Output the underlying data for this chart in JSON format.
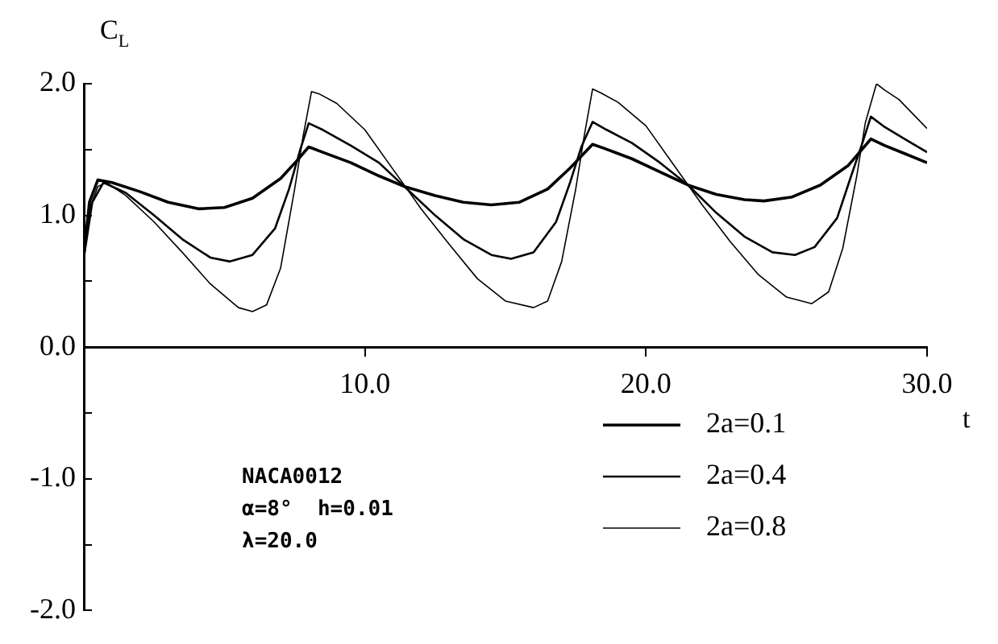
{
  "chart_data": {
    "type": "line",
    "xlabel": "t",
    "ylabel": "C$_{L}$",
    "xlim": [
      0,
      30
    ],
    "xticks": [
      {
        "value": 10,
        "label": "10.0"
      },
      {
        "value": 20,
        "label": "20.0"
      },
      {
        "value": 30,
        "label": "30.0"
      }
    ],
    "ylim": [
      -2,
      2
    ],
    "yticks": [
      {
        "value": -2,
        "label": "-2.0"
      },
      {
        "value": -1.5,
        "label": null
      },
      {
        "value": -1,
        "label": "-1.0"
      },
      {
        "value": -0.5,
        "label": null
      },
      {
        "value": 0,
        "label": "0.0"
      },
      {
        "value": 0.5,
        "label": null
      },
      {
        "value": 1,
        "label": "1.0"
      },
      {
        "value": 1.5,
        "label": null
      },
      {
        "value": 2,
        "label": "2.0"
      }
    ],
    "grid": false,
    "legend": "bottom right",
    "marker": "none",
    "annotations": [
      "NACA0012",
      "α=8°  h=0.01",
      "λ=20.0"
    ],
    "series": [
      {
        "name": "2a=0.1",
        "color": "#000000",
        "x": [
          0,
          0.2,
          0.5,
          1,
          2,
          3,
          4.1,
          5,
          6,
          7,
          7.6,
          8,
          8.5,
          9.5,
          10.5,
          11.4,
          12.5,
          13.5,
          14.5,
          15.5,
          16.5,
          17.3,
          18.1,
          18.5,
          19.5,
          20.5,
          21.5,
          22.5,
          23.5,
          24.2,
          25.2,
          26.2,
          27.2,
          28,
          28.5,
          29.2,
          30
        ],
        "values": [
          0.7,
          1.1,
          1.27,
          1.25,
          1.18,
          1.1,
          1.05,
          1.06,
          1.13,
          1.28,
          1.42,
          1.52,
          1.48,
          1.4,
          1.3,
          1.22,
          1.15,
          1.1,
          1.08,
          1.1,
          1.2,
          1.36,
          1.54,
          1.51,
          1.43,
          1.33,
          1.23,
          1.16,
          1.12,
          1.11,
          1.14,
          1.23,
          1.38,
          1.58,
          1.53,
          1.47,
          1.4
        ]
      },
      {
        "name": "2a=0.4",
        "color": "#000000",
        "x": [
          0,
          0.3,
          0.7,
          1.5,
          2.5,
          3.5,
          4.5,
          5.2,
          6,
          6.8,
          7.3,
          7.7,
          8,
          8.5,
          9.5,
          10.5,
          11.4,
          12.5,
          13.5,
          14.5,
          15.2,
          16,
          16.8,
          17.3,
          17.7,
          18.1,
          18.6,
          19.5,
          20.5,
          21.5,
          22.5,
          23.5,
          24.5,
          25.3,
          26,
          26.8,
          27.3,
          27.7,
          28,
          28.5,
          29.2,
          30
        ],
        "values": [
          0.68,
          1.1,
          1.25,
          1.17,
          1.0,
          0.82,
          0.68,
          0.65,
          0.7,
          0.9,
          1.2,
          1.5,
          1.7,
          1.65,
          1.53,
          1.4,
          1.22,
          1.0,
          0.82,
          0.7,
          0.67,
          0.72,
          0.95,
          1.25,
          1.52,
          1.71,
          1.65,
          1.55,
          1.4,
          1.23,
          1.02,
          0.84,
          0.72,
          0.7,
          0.76,
          0.98,
          1.3,
          1.55,
          1.75,
          1.67,
          1.58,
          1.48
        ]
      },
      {
        "name": "2a=0.8",
        "color": "#000000",
        "x": [
          0,
          0.2,
          0.5,
          0.8,
          1.5,
          2.5,
          3.5,
          4.5,
          5.5,
          6,
          6.5,
          7,
          7.5,
          7.8,
          8.1,
          8.4,
          9,
          10,
          11,
          12,
          13,
          14,
          15,
          16,
          16.5,
          17,
          17.5,
          17.8,
          18.1,
          18.4,
          19,
          20,
          21,
          22,
          23,
          24,
          25,
          25.9,
          26.5,
          27,
          27.5,
          27.8,
          28.2,
          28.5,
          29,
          30
        ],
        "values": [
          0.68,
          1.05,
          1.22,
          1.25,
          1.15,
          0.95,
          0.72,
          0.48,
          0.3,
          0.27,
          0.32,
          0.6,
          1.2,
          1.6,
          1.94,
          1.92,
          1.85,
          1.65,
          1.35,
          1.05,
          0.78,
          0.52,
          0.35,
          0.3,
          0.35,
          0.65,
          1.2,
          1.6,
          1.96,
          1.93,
          1.86,
          1.68,
          1.38,
          1.08,
          0.8,
          0.55,
          0.38,
          0.33,
          0.42,
          0.75,
          1.3,
          1.7,
          2.0,
          1.95,
          1.88,
          1.66
        ]
      }
    ]
  }
}
